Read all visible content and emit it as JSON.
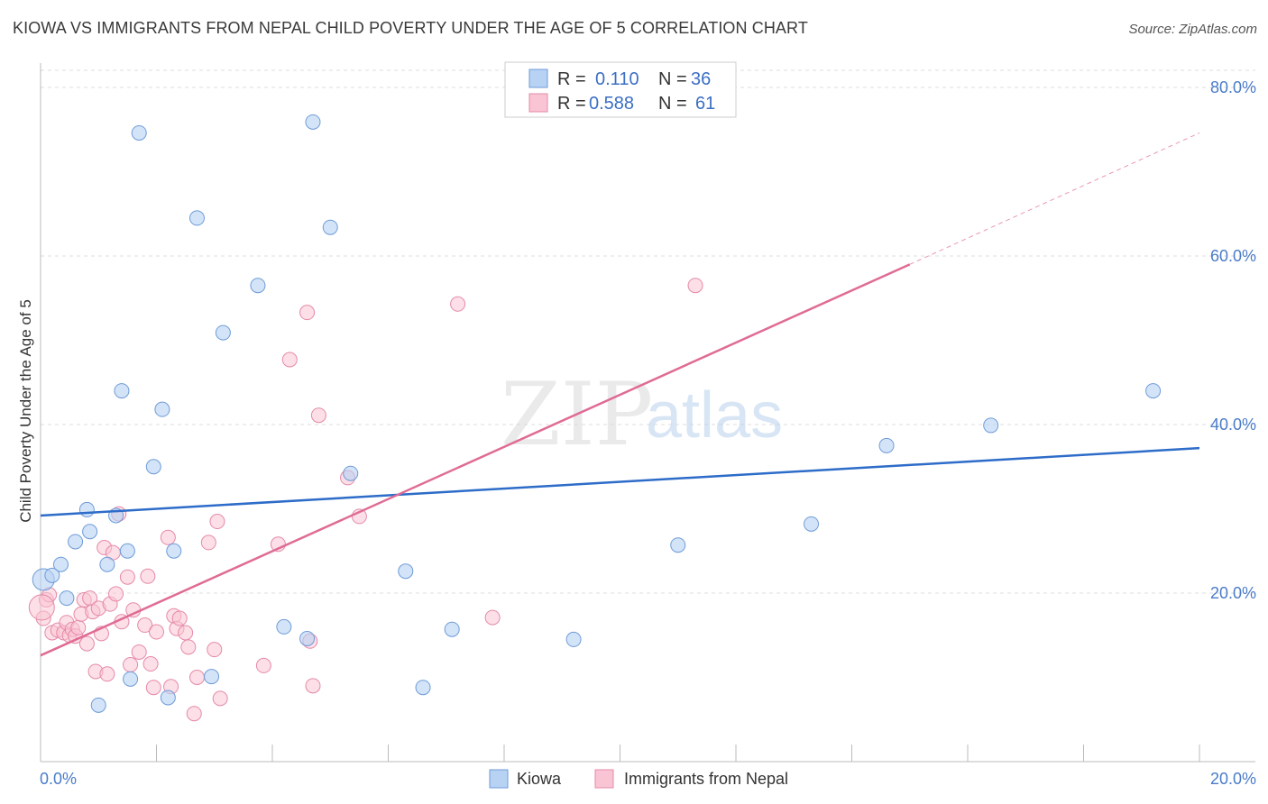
{
  "header": {
    "title": "KIOWA VS IMMIGRANTS FROM NEPAL CHILD POVERTY UNDER THE AGE OF 5 CORRELATION CHART",
    "source": "Source: ZipAtlas.com"
  },
  "watermark": {
    "zip": "ZIP",
    "atlas": "atlas"
  },
  "legend": {
    "r_label": "R =",
    "n_label": "N =",
    "series": [
      {
        "name": "Kiowa",
        "r": "0.110",
        "n": "36"
      },
      {
        "name": "Immigrants from Nepal",
        "r": "0.588",
        "n": "61"
      }
    ]
  },
  "colors": {
    "kiowa_fill": "#b8d2f4",
    "kiowa_stroke": "#6e9bd8",
    "kiowa_line": "#2d6cc8",
    "nepal_fill": "#f9c4d4",
    "nepal_stroke": "#e58aa8",
    "nepal_line": "#e06b94",
    "grid": "#dddddd",
    "tick_text": "#4a7cc9"
  },
  "chart_data": {
    "type": "scatter",
    "title": "KIOWA VS IMMIGRANTS FROM NEPAL CHILD POVERTY UNDER THE AGE OF 5 CORRELATION CHART",
    "xlabel": "",
    "ylabel": "Child Poverty Under the Age of 5",
    "xlim": [
      0,
      20
    ],
    "ylim": [
      0,
      80
    ],
    "x_tick_labels": [
      "0.0%",
      "20.0%"
    ],
    "y_ticks": [
      20,
      40,
      60,
      80
    ],
    "y_tick_labels": [
      "20.0%",
      "40.0%",
      "60.0%",
      "80.0%"
    ],
    "grid": true,
    "series": [
      {
        "name": "Kiowa",
        "trend": {
          "x": [
            0,
            20
          ],
          "y": [
            29.2,
            37.2
          ]
        },
        "points": [
          {
            "x": 0.05,
            "y": 21.6
          },
          {
            "x": 0.2,
            "y": 22.1
          },
          {
            "x": 0.35,
            "y": 23.4
          },
          {
            "x": 0.45,
            "y": 19.4
          },
          {
            "x": 0.6,
            "y": 26.1
          },
          {
            "x": 0.8,
            "y": 29.9
          },
          {
            "x": 0.85,
            "y": 27.3
          },
          {
            "x": 1.0,
            "y": 6.7
          },
          {
            "x": 1.15,
            "y": 23.4
          },
          {
            "x": 1.3,
            "y": 29.2
          },
          {
            "x": 1.4,
            "y": 44.0
          },
          {
            "x": 1.5,
            "y": 25.0
          },
          {
            "x": 1.55,
            "y": 9.8
          },
          {
            "x": 1.7,
            "y": 74.6
          },
          {
            "x": 1.95,
            "y": 35.0
          },
          {
            "x": 2.1,
            "y": 41.8
          },
          {
            "x": 2.2,
            "y": 7.6
          },
          {
            "x": 2.3,
            "y": 25.0
          },
          {
            "x": 2.7,
            "y": 64.5
          },
          {
            "x": 2.95,
            "y": 10.1
          },
          {
            "x": 3.15,
            "y": 50.9
          },
          {
            "x": 3.75,
            "y": 56.5
          },
          {
            "x": 4.2,
            "y": 16.0
          },
          {
            "x": 4.6,
            "y": 14.6
          },
          {
            "x": 4.7,
            "y": 75.9
          },
          {
            "x": 5.0,
            "y": 63.4
          },
          {
            "x": 5.35,
            "y": 34.2
          },
          {
            "x": 6.3,
            "y": 22.6
          },
          {
            "x": 6.6,
            "y": 8.8
          },
          {
            "x": 7.1,
            "y": 15.7
          },
          {
            "x": 9.2,
            "y": 14.5
          },
          {
            "x": 11.0,
            "y": 25.7
          },
          {
            "x": 13.3,
            "y": 28.2
          },
          {
            "x": 14.6,
            "y": 37.5
          },
          {
            "x": 16.4,
            "y": 39.9
          },
          {
            "x": 19.2,
            "y": 44.0
          }
        ]
      },
      {
        "name": "Immigrants from Nepal",
        "trend": {
          "x": [
            0,
            15.0
          ],
          "y": [
            12.6,
            59.0
          ]
        },
        "trend_extension": {
          "x": [
            15.0,
            20
          ],
          "y": [
            59.0,
            74.6
          ]
        },
        "points": [
          {
            "x": 0.05,
            "y": 17.0
          },
          {
            "x": 0.1,
            "y": 19.2
          },
          {
            "x": 0.15,
            "y": 19.8
          },
          {
            "x": 0.2,
            "y": 15.3
          },
          {
            "x": 0.3,
            "y": 15.6
          },
          {
            "x": 0.4,
            "y": 15.3
          },
          {
            "x": 0.45,
            "y": 16.5
          },
          {
            "x": 0.5,
            "y": 15.0
          },
          {
            "x": 0.55,
            "y": 15.7
          },
          {
            "x": 0.6,
            "y": 14.9
          },
          {
            "x": 0.65,
            "y": 15.9
          },
          {
            "x": 0.7,
            "y": 17.5
          },
          {
            "x": 0.75,
            "y": 19.2
          },
          {
            "x": 0.8,
            "y": 14.0
          },
          {
            "x": 0.85,
            "y": 19.4
          },
          {
            "x": 0.9,
            "y": 17.8
          },
          {
            "x": 0.95,
            "y": 10.7
          },
          {
            "x": 1.0,
            "y": 18.2
          },
          {
            "x": 1.05,
            "y": 15.2
          },
          {
            "x": 1.1,
            "y": 25.4
          },
          {
            "x": 1.15,
            "y": 10.4
          },
          {
            "x": 1.2,
            "y": 18.7
          },
          {
            "x": 1.25,
            "y": 24.8
          },
          {
            "x": 1.3,
            "y": 19.9
          },
          {
            "x": 1.35,
            "y": 29.4
          },
          {
            "x": 1.4,
            "y": 16.6
          },
          {
            "x": 1.5,
            "y": 21.9
          },
          {
            "x": 1.55,
            "y": 11.5
          },
          {
            "x": 1.6,
            "y": 18.0
          },
          {
            "x": 1.7,
            "y": 13.0
          },
          {
            "x": 1.8,
            "y": 16.2
          },
          {
            "x": 1.85,
            "y": 22.0
          },
          {
            "x": 1.9,
            "y": 11.6
          },
          {
            "x": 1.95,
            "y": 8.8
          },
          {
            "x": 2.0,
            "y": 15.4
          },
          {
            "x": 2.2,
            "y": 26.6
          },
          {
            "x": 2.25,
            "y": 8.9
          },
          {
            "x": 2.3,
            "y": 17.3
          },
          {
            "x": 2.35,
            "y": 15.8
          },
          {
            "x": 2.4,
            "y": 17.0
          },
          {
            "x": 2.5,
            "y": 15.3
          },
          {
            "x": 2.55,
            "y": 13.6
          },
          {
            "x": 2.65,
            "y": 5.7
          },
          {
            "x": 2.7,
            "y": 10.0
          },
          {
            "x": 2.9,
            "y": 26.0
          },
          {
            "x": 3.0,
            "y": 13.3
          },
          {
            "x": 3.05,
            "y": 28.5
          },
          {
            "x": 3.1,
            "y": 7.5
          },
          {
            "x": 3.85,
            "y": 11.4
          },
          {
            "x": 4.1,
            "y": 25.8
          },
          {
            "x": 4.3,
            "y": 47.7
          },
          {
            "x": 4.6,
            "y": 53.3
          },
          {
            "x": 4.65,
            "y": 14.3
          },
          {
            "x": 4.7,
            "y": 9.0
          },
          {
            "x": 4.8,
            "y": 41.1
          },
          {
            "x": 5.3,
            "y": 33.7
          },
          {
            "x": 5.5,
            "y": 29.1
          },
          {
            "x": 7.2,
            "y": 54.3
          },
          {
            "x": 7.8,
            "y": 17.1
          },
          {
            "x": 11.3,
            "y": 56.5
          },
          {
            "x": 0.02,
            "y": 18.3
          }
        ]
      }
    ]
  },
  "bottom_legend": [
    {
      "name": "Kiowa"
    },
    {
      "name": "Immigrants from Nepal"
    }
  ]
}
